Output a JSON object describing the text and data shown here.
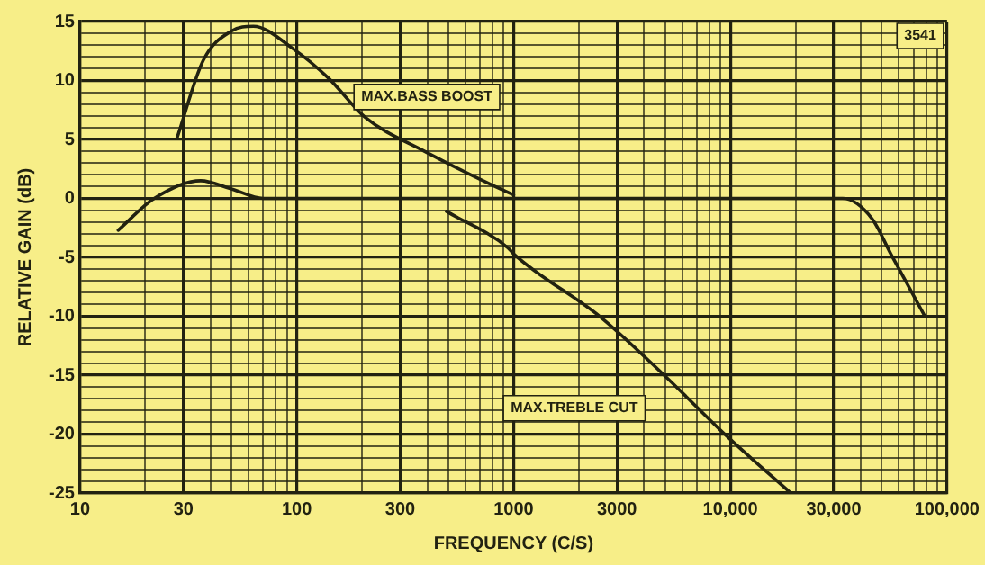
{
  "chart_data": {
    "type": "line",
    "xlabel": "FREQUENCY (C/S)",
    "ylabel": "RELATIVE GAIN (dB)",
    "log": "x",
    "grid": true,
    "legend": false,
    "marker": "none",
    "line_style": "solid",
    "xlim": [
      10,
      100000
    ],
    "ylim": [
      -25,
      15
    ],
    "xticks": [
      10,
      {
        "value": 20,
        "label": null
      },
      30,
      {
        "value": 40,
        "label": null
      },
      {
        "value": 50,
        "label": null
      },
      {
        "value": 60,
        "label": null
      },
      {
        "value": 70,
        "label": null
      },
      {
        "value": 80,
        "label": null
      },
      {
        "value": 90,
        "label": null
      },
      100,
      {
        "value": 200,
        "label": null
      },
      300,
      {
        "value": 400,
        "label": null
      },
      {
        "value": 500,
        "label": null
      },
      {
        "value": 600,
        "label": null
      },
      {
        "value": 700,
        "label": null
      },
      {
        "value": 800,
        "label": null
      },
      {
        "value": 900,
        "label": null
      },
      1000,
      {
        "value": 2000,
        "label": null
      },
      3000,
      {
        "value": 4000,
        "label": null
      },
      {
        "value": 5000,
        "label": null
      },
      {
        "value": 6000,
        "label": null
      },
      {
        "value": 7000,
        "label": null
      },
      {
        "value": 8000,
        "label": null
      },
      {
        "value": 9000,
        "label": null
      },
      {
        "value": 10000,
        "label": "10,000"
      },
      {
        "value": 20000,
        "label": null
      },
      {
        "value": 30000,
        "label": "30,000"
      },
      {
        "value": 40000,
        "label": null
      },
      {
        "value": 50000,
        "label": null
      },
      {
        "value": 60000,
        "label": null
      },
      {
        "value": 70000,
        "label": null
      },
      {
        "value": 80000,
        "label": null
      },
      {
        "value": 90000,
        "label": null
      },
      {
        "value": 100000,
        "label": "100,000"
      }
    ],
    "yticks": [
      -25,
      {
        "value": -24,
        "label": null
      },
      {
        "value": -23,
        "label": null
      },
      {
        "value": -22,
        "label": null
      },
      {
        "value": -21,
        "label": null
      },
      -20,
      {
        "value": -19,
        "label": null
      },
      {
        "value": -18,
        "label": null
      },
      {
        "value": -17,
        "label": null
      },
      {
        "value": -16,
        "label": null
      },
      -15,
      {
        "value": -14,
        "label": null
      },
      {
        "value": -13,
        "label": null
      },
      {
        "value": -12,
        "label": null
      },
      {
        "value": -11,
        "label": null
      },
      -10,
      {
        "value": -9,
        "label": null
      },
      {
        "value": -8,
        "label": null
      },
      {
        "value": -7,
        "label": null
      },
      {
        "value": -6,
        "label": null
      },
      -5,
      {
        "value": -4,
        "label": null
      },
      {
        "value": -3,
        "label": null
      },
      {
        "value": -2,
        "label": null
      },
      {
        "value": -1,
        "label": null
      },
      0,
      {
        "value": 1,
        "label": null
      },
      {
        "value": 2,
        "label": null
      },
      {
        "value": 3,
        "label": null
      },
      {
        "value": 4,
        "label": null
      },
      5,
      {
        "value": 6,
        "label": null
      },
      {
        "value": 7,
        "label": null
      },
      {
        "value": 8,
        "label": null
      },
      {
        "value": 9,
        "label": null
      },
      10,
      {
        "value": 11,
        "label": null
      },
      {
        "value": 12,
        "label": null
      },
      {
        "value": 13,
        "label": null
      },
      {
        "value": 14,
        "label": null
      },
      15
    ],
    "series": [
      {
        "color": "#222211",
        "x": [
          28,
          37,
          50,
          63,
          96,
          140,
          206,
          388,
          944,
          1000
        ],
        "values": [
          5.1,
          11.7,
          14.2,
          14.6,
          12.7,
          10.2,
          6.9,
          4.0,
          0.5,
          0.3
        ]
      },
      {
        "color": "#222211",
        "x": [
          15,
          22,
          36,
          50,
          70,
          1000,
          10000,
          33000,
          45000,
          55000,
          79000
        ],
        "values": [
          -2.7,
          0,
          1.5,
          0.8,
          0,
          0,
          0,
          0,
          -1.7,
          -4.7,
          -10
        ]
      },
      {
        "color": "#222211",
        "x": [
          490,
          944,
          1000,
          2530,
          4950,
          9800,
          19000
        ],
        "values": [
          -1.1,
          -4.2,
          -4.7,
          -10.1,
          -15,
          -20.3,
          -25
        ]
      }
    ],
    "annotations": [
      "MAX.BASS BOOST",
      "MAX.TREBLE CUT",
      "3541"
    ]
  }
}
